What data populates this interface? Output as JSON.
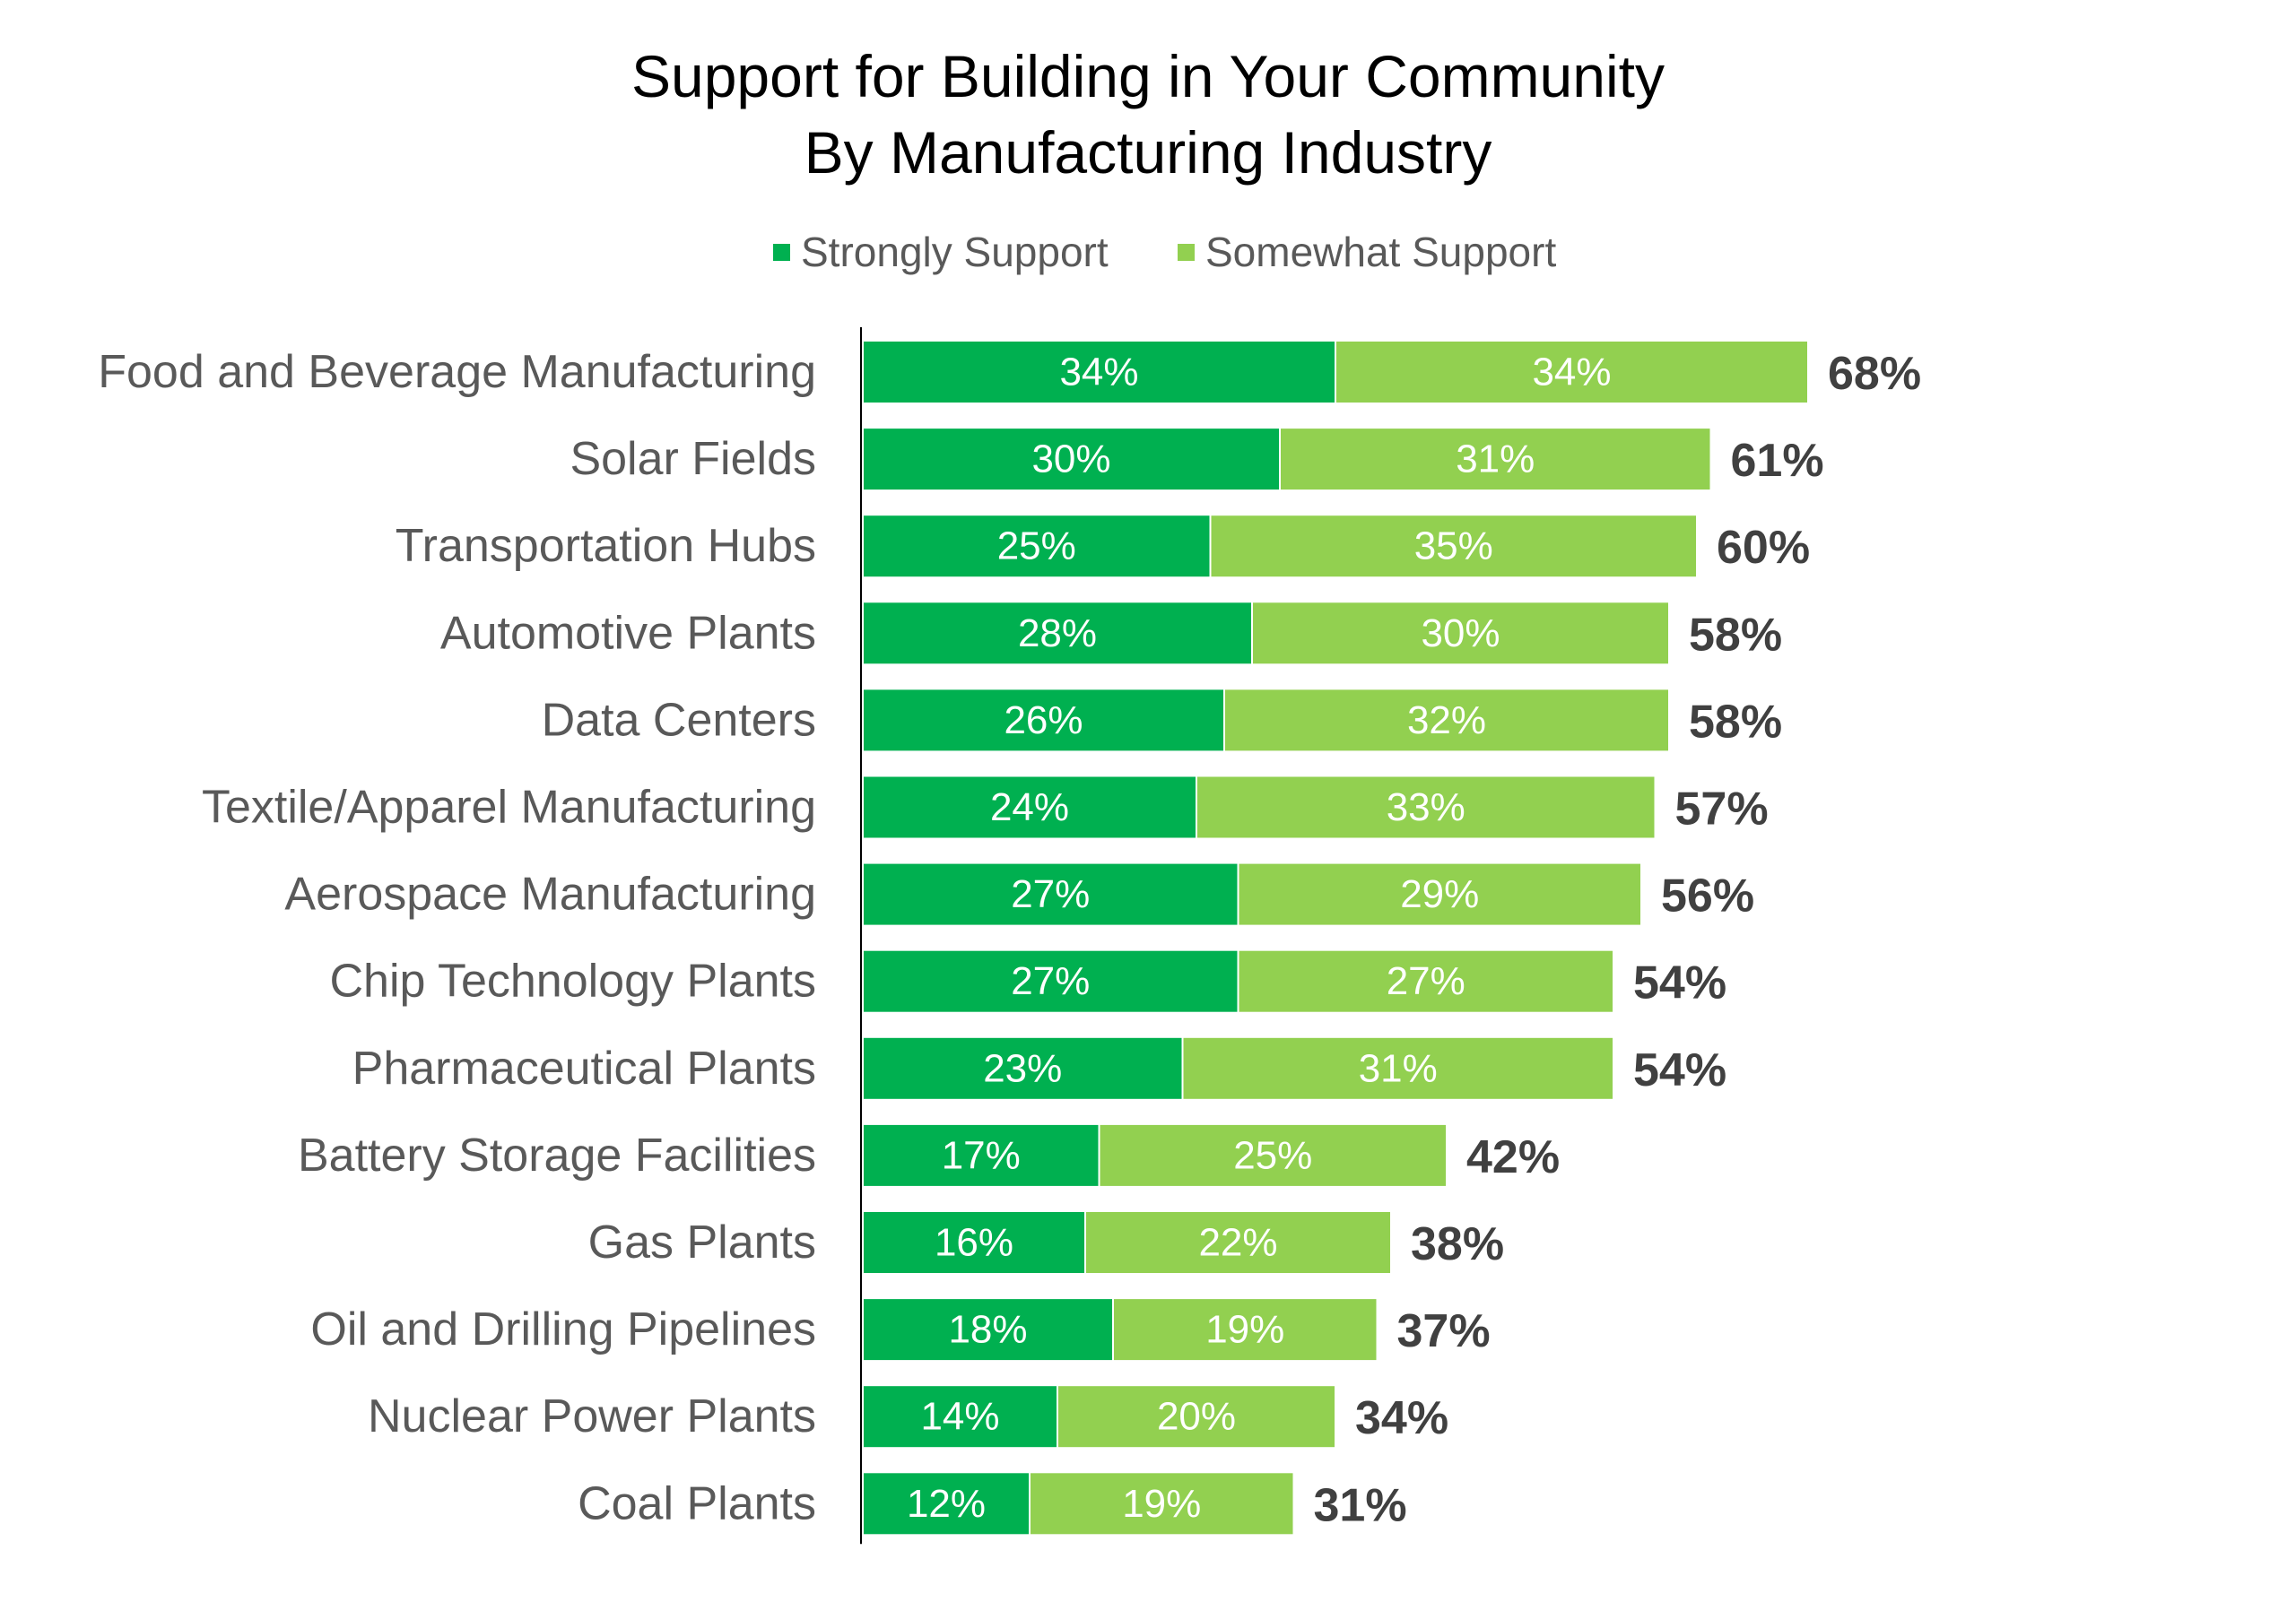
{
  "colors": {
    "strongly": "#00B050",
    "somewhat": "#92D050",
    "category_text": "#595959",
    "total_text": "#404040",
    "segment_text": "#ffffff",
    "axis": "#000000"
  },
  "chart_data": {
    "type": "bar",
    "orientation": "horizontal",
    "stacked": true,
    "title": [
      "Support for Building in Your Community",
      "By Manufacturing Industry"
    ],
    "legend_position": "top",
    "grid": false,
    "xlim": [
      0,
      100
    ],
    "categories": [
      "Food and Beverage Manufacturing",
      "Solar Fields",
      "Transportation Hubs",
      "Automotive Plants",
      "Data Centers",
      "Textile/Apparel Manufacturing",
      "Aerospace Manufacturing",
      "Chip Technology Plants",
      "Pharmaceutical Plants",
      "Battery Storage Facilities",
      "Gas Plants",
      "Oil and Drilling Pipelines",
      "Nuclear Power Plants",
      "Coal Plants"
    ],
    "series": [
      {
        "name": "Strongly Support",
        "values": [
          34,
          30,
          25,
          28,
          26,
          24,
          27,
          27,
          23,
          17,
          16,
          18,
          14,
          12
        ]
      },
      {
        "name": "Somewhat Support",
        "values": [
          34,
          31,
          35,
          30,
          32,
          33,
          29,
          27,
          31,
          25,
          22,
          19,
          20,
          19
        ]
      }
    ],
    "totals": [
      68,
      61,
      60,
      58,
      58,
      57,
      56,
      54,
      54,
      42,
      38,
      37,
      34,
      31
    ],
    "value_suffix": "%"
  }
}
